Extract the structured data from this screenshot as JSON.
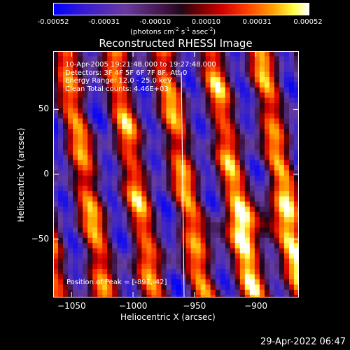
{
  "colorbar": {
    "ticks": [
      "-0.00052",
      "-0.00031",
      "-0.00010",
      "0.00010",
      "0.00031",
      "0.00052"
    ],
    "units_prefix": "(photons cm",
    "units_exp1": "-2",
    "units_mid": " s",
    "units_exp2": "-1",
    "units_suffix": " asec",
    "units_exp3": "-2",
    "units_close": ")"
  },
  "info": {
    "time": "10-Apr-2005 19:21:48.000 to 19:27:48.000",
    "detectors": "Detectors: 3F 4F 5F 6F 7F 8F, Att 0",
    "energy": "Energy Range: 12.0 - 25.0 keV",
    "method": "Clean    Total counts: 4.46E+03",
    "peak": "Position of Peak = [-897,-42]"
  },
  "timestamp": "29-Apr-2022 06:47",
  "colors": {
    "low": "#0000ff",
    "mid_low": "#6a3aa0",
    "zero": "#2a0a2a",
    "mid_high": "#ff2020",
    "high": "#ffffff"
  },
  "chart_data": {
    "type": "heatmap",
    "title": "Reconstructed RHESSI Image",
    "xlabel": "Heliocentric X (arcsec)",
    "ylabel": "Heliocentric Y (arcsec)",
    "xlim": [
      -1065,
      -865
    ],
    "ylim": [
      -95,
      95
    ],
    "x_ticks": [
      -1050,
      -1000,
      -950,
      -900
    ],
    "x_tick_labels": [
      "−1050",
      "−1000",
      "−950",
      "−900"
    ],
    "y_ticks": [
      -50,
      0,
      50
    ],
    "y_tick_labels": [
      "−50",
      "0",
      "50"
    ],
    "color_range": [
      -0.00052,
      0.00052
    ],
    "peak": [
      -897,
      -42
    ],
    "ridge_offsets": [
      -1041,
      -1002,
      -962,
      -921,
      -884
    ],
    "ridge_tilt": 0.18,
    "stripe_period": 40
  }
}
